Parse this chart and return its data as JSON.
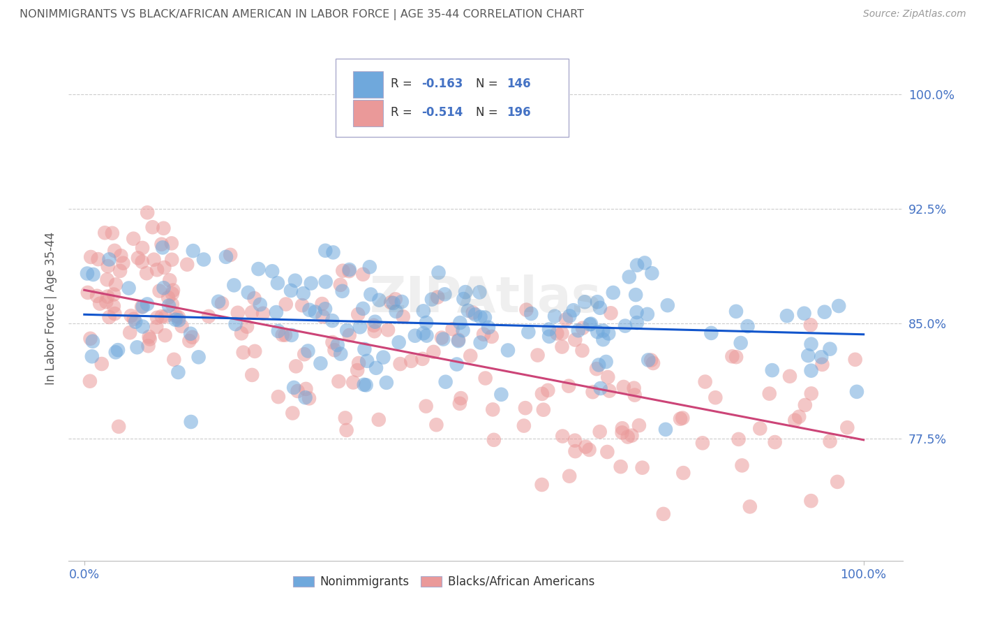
{
  "title": "NONIMMIGRANTS VS BLACK/AFRICAN AMERICAN IN LABOR FORCE | AGE 35-44 CORRELATION CHART",
  "source": "Source: ZipAtlas.com",
  "ylabel": "In Labor Force | Age 35-44",
  "xlim": [
    0.0,
    1.0
  ],
  "ylim": [
    0.695,
    1.025
  ],
  "yticks": [
    0.775,
    0.85,
    0.925,
    1.0
  ],
  "ytick_labels": [
    "77.5%",
    "85.0%",
    "92.5%",
    "100.0%"
  ],
  "xticks": [
    0.0,
    1.0
  ],
  "xtick_labels": [
    "0.0%",
    "100.0%"
  ],
  "blue_N": 146,
  "pink_N": 196,
  "blue_color": "#6fa8dc",
  "pink_color": "#ea9999",
  "blue_line_color": "#1155cc",
  "pink_line_color": "#cc4477",
  "blue_R_text": "-0.163",
  "blue_N_text": "146",
  "pink_R_text": "-0.514",
  "pink_N_text": "196",
  "grid_color": "#cccccc",
  "background_color": "#ffffff",
  "title_color": "#595959",
  "axis_label_color": "#595959",
  "tick_color": "#4472c4",
  "watermark": "ZIPAtlas",
  "blue_intercept": 0.856,
  "blue_slope": -0.013,
  "pink_intercept": 0.872,
  "pink_slope": -0.098
}
